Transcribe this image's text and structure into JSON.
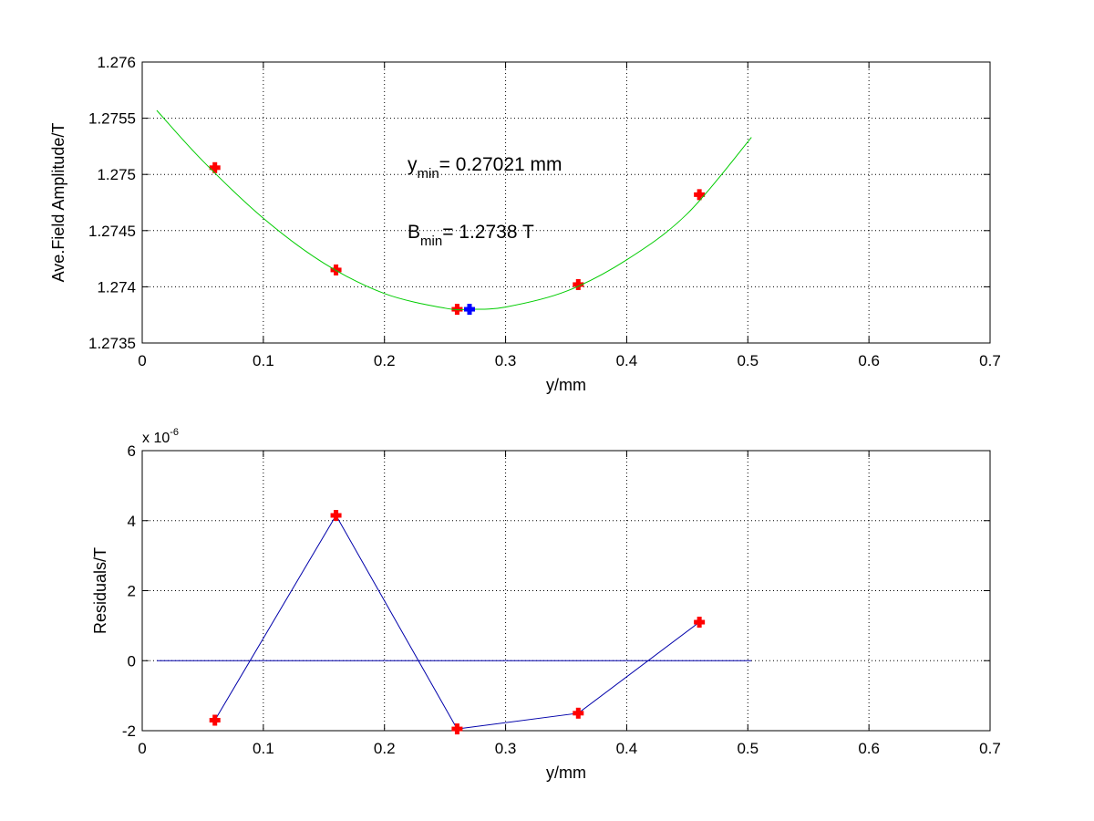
{
  "chart_data": [
    {
      "type": "scatter",
      "xlabel": "y/mm",
      "ylabel": "Ave.Field Amplitude/T",
      "xlim": [
        0,
        0.7
      ],
      "ylim": [
        1.2735,
        1.276
      ],
      "xticks": [
        "0",
        "0.1",
        "0.2",
        "0.3",
        "0.4",
        "0.5",
        "0.6",
        "0.7"
      ],
      "yticks": [
        "1.2735",
        "1.274",
        "1.2745",
        "1.275",
        "1.2755",
        "1.276"
      ],
      "grid": true,
      "series": [
        {
          "style": "markers",
          "marker": "plus",
          "color": "#ff0000",
          "x": [
            0.06,
            0.16,
            0.26,
            0.36,
            0.46
          ],
          "y": [
            1.27506,
            1.27415,
            1.2738,
            1.27402,
            1.27482
          ]
        },
        {
          "style": "line",
          "color": "#00cc00",
          "x": [
            0.012,
            0.05,
            0.1,
            0.15,
            0.2,
            0.25,
            0.27021,
            0.3,
            0.35,
            0.4,
            0.45,
            0.503
          ],
          "y": [
            1.27557,
            1.27512,
            1.27461,
            1.27421,
            1.27394,
            1.27381,
            1.2738,
            1.27382,
            1.27396,
            1.27424,
            1.27465,
            1.27533
          ]
        },
        {
          "style": "markers",
          "marker": "plus",
          "color": "#0000ff",
          "x": [
            0.27021
          ],
          "y": [
            1.2738
          ]
        }
      ],
      "annotations": [
        {
          "main": "y",
          "sub": "min",
          "text": "= 0.27021 mm"
        },
        {
          "main": "B",
          "sub": "min",
          "text": "= 1.2738 T"
        }
      ]
    },
    {
      "type": "line",
      "xlabel": "y/mm",
      "ylabel": "Residuals/T",
      "xlim": [
        0,
        0.7
      ],
      "ylim": [
        -2,
        6
      ],
      "xticks": [
        "0",
        "0.1",
        "0.2",
        "0.3",
        "0.4",
        "0.5",
        "0.6",
        "0.7"
      ],
      "yticks": [
        "-2",
        "0",
        "2",
        "4",
        "6"
      ],
      "exponent": {
        "base": "x 10",
        "power": "-6"
      },
      "grid": true,
      "series": [
        {
          "style": "line-markers",
          "marker": "plus",
          "line_color": "#0000aa",
          "marker_color": "#ff0000",
          "x": [
            0.06,
            0.16,
            0.26,
            0.36,
            0.46
          ],
          "y": [
            -1.7,
            4.15,
            -1.95,
            -1.5,
            1.1
          ]
        },
        {
          "style": "line",
          "color": "#0000aa",
          "x": [
            0.012,
            0.503
          ],
          "y": [
            0,
            0
          ]
        }
      ]
    }
  ]
}
